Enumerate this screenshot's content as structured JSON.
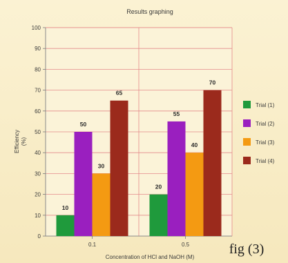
{
  "chart_data": {
    "type": "bar",
    "title": "Results graphing",
    "xlabel": "Concentration of HCl and NaOH (M)",
    "ylabel": "Efficiency (%)",
    "ylabel_lines": [
      "Efficiency",
      "(%)"
    ],
    "categories": [
      "0.1",
      "0.5"
    ],
    "series": [
      {
        "name": "Trial (1)",
        "values": [
          10,
          20
        ],
        "color": "#1f9a3c"
      },
      {
        "name": "Trial (2)",
        "values": [
          50,
          55
        ],
        "color": "#9a1fbf"
      },
      {
        "name": "Trial (3)",
        "values": [
          30,
          40
        ],
        "color": "#f49a12"
      },
      {
        "name": "Trial (4)",
        "values": [
          65,
          70
        ],
        "color": "#9b2a1c"
      }
    ],
    "ylim": [
      0,
      100
    ],
    "yticks": [
      0,
      10,
      20,
      30,
      40,
      50,
      60,
      70,
      80,
      90,
      100
    ],
    "grid": true,
    "grid_color": "#e48a8a",
    "legend_position": "right"
  },
  "caption": "fig (3)"
}
